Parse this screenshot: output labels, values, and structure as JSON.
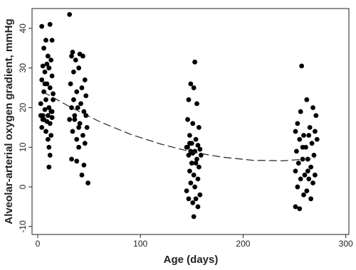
{
  "chart_data": {
    "type": "scatter",
    "xlabel": "Age (days)",
    "ylabel": "Alveolar-arterial oxygen gradient, mmHg",
    "xlim": [
      -5.5,
      303
    ],
    "ylim": [
      -12,
      45
    ],
    "xticks": [
      0,
      100,
      200,
      300
    ],
    "yticks": [
      -10,
      0,
      10,
      20,
      30,
      40
    ],
    "grid": false,
    "series": [
      {
        "type": "scatter",
        "color": "#000000",
        "x": [
          4,
          12,
          8,
          14,
          6,
          10,
          13,
          9,
          5,
          11,
          7,
          14,
          4,
          9,
          12,
          6,
          15,
          8,
          3,
          11,
          7,
          13,
          5,
          10,
          14,
          6,
          9,
          12,
          4,
          8,
          13,
          10,
          11,
          12,
          11,
          15,
          3,
          7,
          14,
          5,
          31,
          34,
          41,
          33,
          44,
          37,
          40,
          35,
          46,
          32,
          43,
          38,
          47,
          35,
          42,
          33,
          39,
          45,
          36,
          31,
          41,
          48,
          34,
          44,
          38,
          46,
          40,
          33,
          38,
          45,
          43,
          49,
          36,
          40,
          47,
          153,
          149,
          152,
          147,
          155,
          146,
          151,
          157,
          148,
          154,
          150,
          156,
          146,
          158,
          149,
          153,
          151,
          147,
          155,
          150,
          157,
          148,
          152,
          156,
          149,
          153,
          145,
          158,
          147,
          154,
          151,
          156,
          152,
          159,
          145,
          148,
          154,
          257,
          262,
          268,
          256,
          271,
          253,
          265,
          251,
          270,
          259,
          264,
          255,
          267,
          261,
          252,
          269,
          258,
          263,
          254,
          266,
          251,
          260,
          270,
          256,
          264,
          268,
          253,
          262,
          259,
          266,
          251,
          255,
          272,
          258,
          263
        ],
        "y": [
          40.5,
          41,
          37,
          37,
          35,
          33,
          32,
          31,
          30.5,
          30,
          29,
          28,
          27,
          26,
          25,
          24,
          23.5,
          22,
          21,
          20,
          19.5,
          19,
          18,
          18,
          17.5,
          17,
          16.5,
          16,
          15,
          14,
          13,
          12,
          10,
          8,
          5,
          22,
          18,
          26,
          19,
          17,
          43.5,
          34,
          33.5,
          33,
          33,
          32,
          30,
          29,
          27,
          26,
          25,
          24,
          23,
          22,
          21,
          20,
          20,
          19,
          18,
          17,
          16,
          15,
          14,
          13,
          12,
          11,
          10,
          7,
          6.5,
          5.5,
          3,
          1,
          17,
          15,
          18,
          31.5,
          26,
          25,
          22,
          21,
          17,
          16,
          15,
          13,
          12,
          11,
          10.5,
          10,
          9.5,
          9,
          9,
          8.5,
          8,
          7,
          6,
          5,
          4,
          3,
          2,
          1,
          0,
          -1,
          -2,
          -3,
          -3,
          -4,
          -5,
          -7.5,
          8,
          10,
          11,
          6,
          30.5,
          22,
          20,
          19,
          18,
          16,
          15,
          14,
          14,
          13,
          13,
          12,
          11,
          10,
          9,
          8,
          7,
          7,
          6,
          5,
          4,
          3,
          3,
          2,
          2,
          1,
          0,
          -1,
          -2,
          -3,
          -5,
          -5.5,
          12,
          10,
          4
        ]
      },
      {
        "type": "line",
        "style": "dashed",
        "color": "#222222",
        "x": [
          5,
          30,
          60,
          90,
          120,
          150,
          180,
          210,
          240,
          270
        ],
        "y": [
          24.0,
          20.4,
          16.5,
          13.3,
          10.8,
          8.8,
          7.5,
          6.7,
          6.6,
          7.2
        ]
      }
    ]
  }
}
